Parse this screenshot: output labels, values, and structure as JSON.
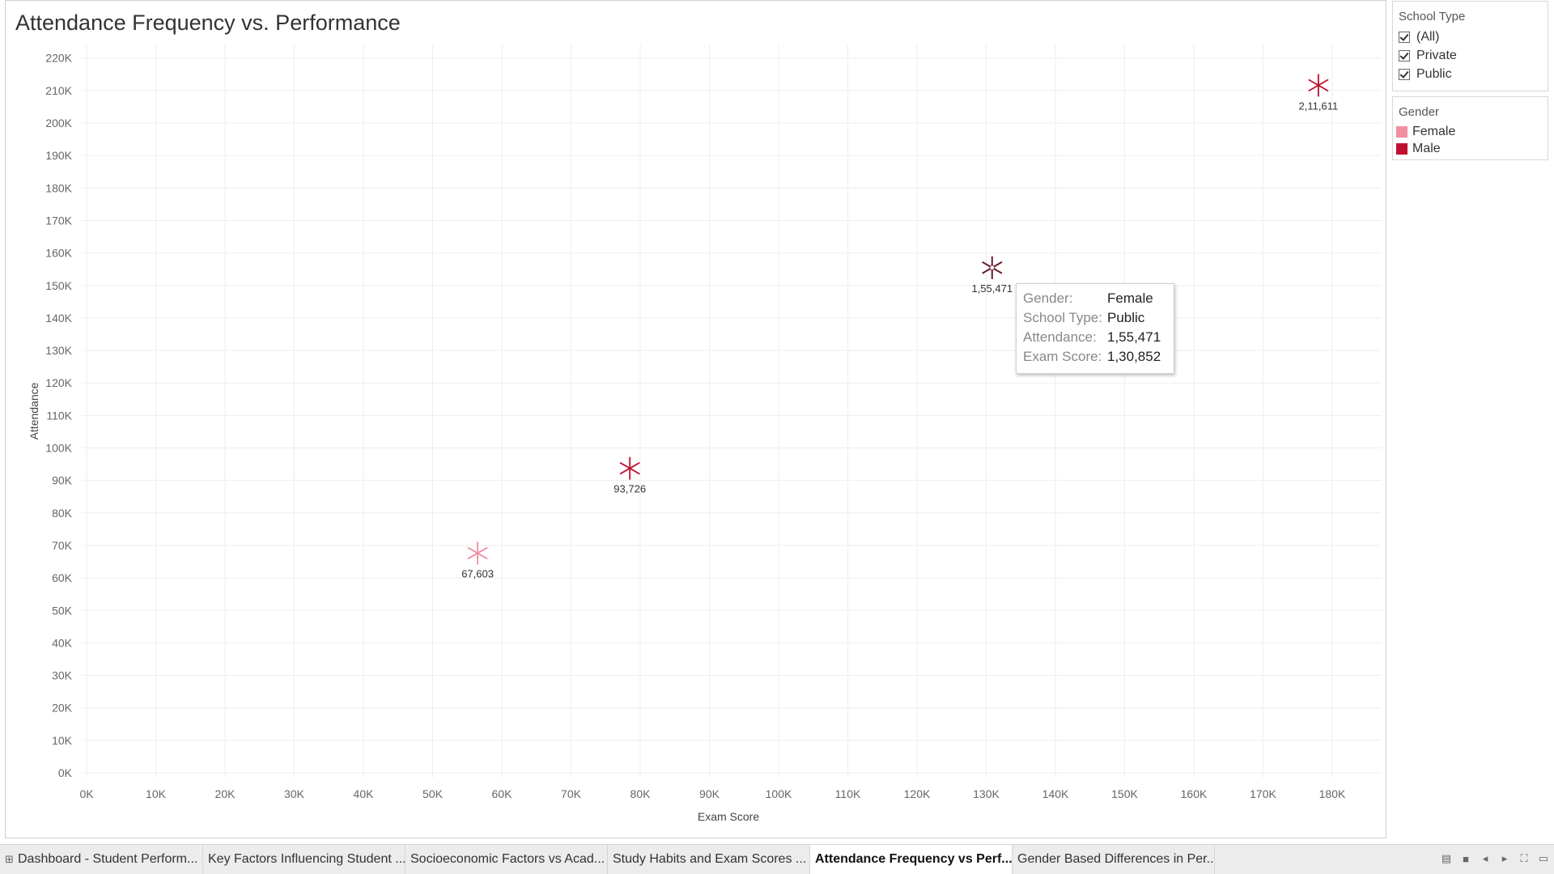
{
  "sheet": {
    "title": "Attendance Frequency vs. Performance"
  },
  "chart_data": {
    "type": "scatter",
    "title": "Attendance Frequency vs. Performance",
    "xlabel": "Exam Score",
    "ylabel": "Attendance",
    "xlim": [
      0,
      190000
    ],
    "ylim": [
      0,
      220000
    ],
    "x_ticks": [
      0,
      10000,
      20000,
      30000,
      40000,
      50000,
      60000,
      70000,
      80000,
      90000,
      100000,
      110000,
      120000,
      130000,
      140000,
      150000,
      160000,
      170000,
      180000
    ],
    "x_tick_labels": [
      "0K",
      "10K",
      "20K",
      "30K",
      "40K",
      "50K",
      "60K",
      "70K",
      "80K",
      "90K",
      "100K",
      "110K",
      "120K",
      "130K",
      "140K",
      "150K",
      "160K",
      "170K",
      "180K"
    ],
    "y_ticks": [
      0,
      10000,
      20000,
      30000,
      40000,
      50000,
      60000,
      70000,
      80000,
      90000,
      100000,
      110000,
      120000,
      130000,
      140000,
      150000,
      160000,
      170000,
      180000,
      190000,
      200000,
      210000,
      220000
    ],
    "y_tick_labels": [
      "0K",
      "10K",
      "20K",
      "30K",
      "40K",
      "50K",
      "60K",
      "70K",
      "80K",
      "90K",
      "100K",
      "110K",
      "120K",
      "130K",
      "140K",
      "150K",
      "160K",
      "170K",
      "180K",
      "190K",
      "200K",
      "210K",
      "220K"
    ],
    "grid": true,
    "marker": "asterisk",
    "points": [
      {
        "gender": "Female",
        "x": 56500,
        "y": 67603,
        "label": "67,603",
        "color": "#f08fa0"
      },
      {
        "gender": "Male",
        "x": 78500,
        "y": 93726,
        "label": "93,726",
        "color": "#c0102f"
      },
      {
        "gender": "Female",
        "x": 130852,
        "y": 155471,
        "label": "1,55,471",
        "color": "#6b1a2c",
        "highlighted": true
      },
      {
        "gender": "Male",
        "x": 178000,
        "y": 211611,
        "label": "2,11,611",
        "color": "#c0102f"
      }
    ]
  },
  "filters": {
    "title": "School Type",
    "items": [
      {
        "label": "(All)",
        "checked": true
      },
      {
        "label": "Private",
        "checked": true
      },
      {
        "label": "Public",
        "checked": true
      }
    ]
  },
  "color_legend": {
    "title": "Gender",
    "items": [
      {
        "label": "Female",
        "color": "#f08fa0"
      },
      {
        "label": "Male",
        "color": "#c0102f"
      }
    ]
  },
  "tooltip": {
    "rows": [
      {
        "key": "Gender:",
        "value": "Female"
      },
      {
        "key": "School Type:",
        "value": "Public"
      },
      {
        "key": "Attendance:",
        "value": "1,55,471"
      },
      {
        "key": "Exam Score:",
        "value": "1,30,852"
      }
    ]
  },
  "tabs": [
    {
      "label": "Dashboard - Student Perform...",
      "icon": "dashboard-icon",
      "active": false
    },
    {
      "label": "Key Factors Influencing Student ...",
      "active": false
    },
    {
      "label": "Socioeconomic Factors vs Acad...",
      "active": false
    },
    {
      "label": "Study Habits and Exam Scores ...",
      "active": false
    },
    {
      "label": "Attendance Frequency vs Perf...",
      "active": true
    },
    {
      "label": "Gender Based Differences in Per...",
      "active": false
    }
  ],
  "nav_icons": [
    "grid-view-icon",
    "single-view-icon",
    "prev-sheet-icon",
    "next-sheet-icon",
    "fullscreen-icon",
    "presentation-icon"
  ]
}
